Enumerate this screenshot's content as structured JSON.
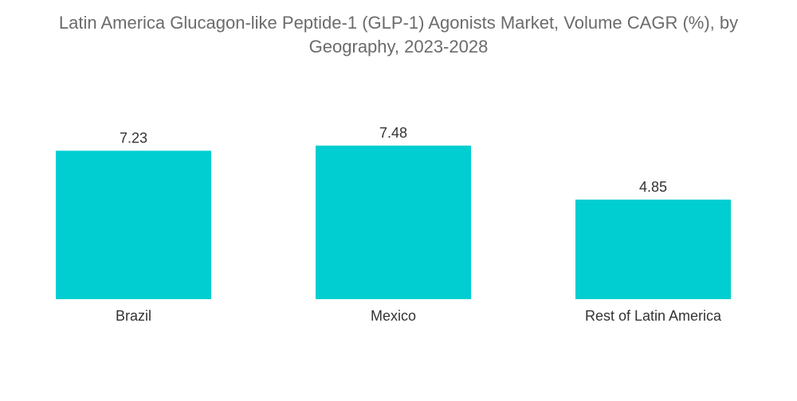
{
  "chart_data": {
    "type": "bar",
    "title_lines": [
      "Latin America Glucagon-like Peptide-1 (GLP-1) Agonists Market, Volume CAGR (%), by",
      "Geography, 2023-2028"
    ],
    "categories": [
      "Brazil",
      "Mexico",
      "Rest of Latin America"
    ],
    "values": [
      7.23,
      7.48,
      4.85
    ],
    "value_labels": [
      "7.23",
      "7.48",
      "4.85"
    ],
    "xlabel": "",
    "ylabel": "",
    "ylim": [
      0,
      7.48
    ],
    "grid": false,
    "legend": "none",
    "bar_color": "#00CED1"
  }
}
